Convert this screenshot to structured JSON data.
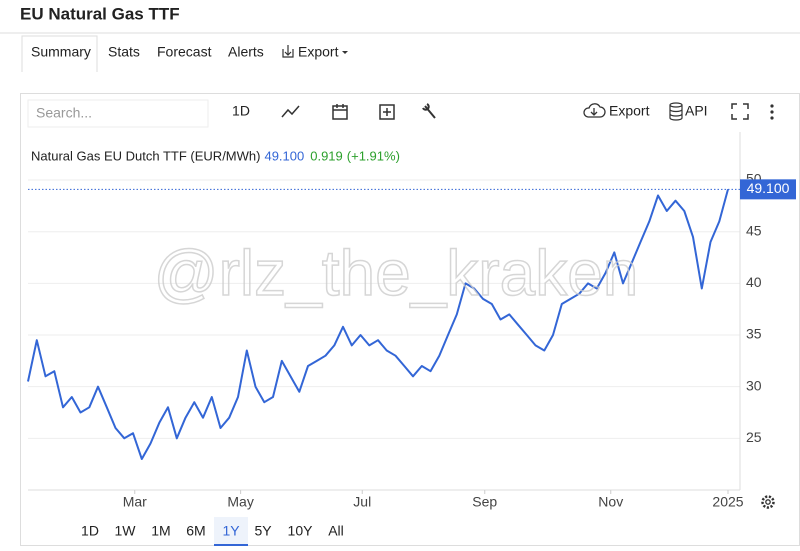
{
  "header": {
    "title": "EU Natural Gas TTF"
  },
  "tabs": [
    "Summary",
    "Stats",
    "Forecast",
    "Alerts",
    "Export"
  ],
  "toolbar": {
    "search_placeholder": "Search...",
    "interval": "1D",
    "export": "Export",
    "api": "API"
  },
  "watermark": "@rlz_the_kraken",
  "ranges": [
    "1D",
    "1W",
    "1M",
    "6M",
    "1Y",
    "5Y",
    "10Y",
    "All"
  ],
  "selected_range": "1Y",
  "chart_data": {
    "type": "line",
    "series": [
      {
        "name": "Natural Gas EU Dutch TTF (EUR/MWh)",
        "color": "#3366d6",
        "values": [
          30.5,
          34.5,
          31,
          31.5,
          28,
          29,
          27.5,
          28,
          30,
          28,
          26,
          25,
          25.5,
          23,
          24.5,
          26.5,
          28,
          25,
          27,
          28.5,
          27,
          29,
          26,
          27,
          29,
          33.5,
          30,
          28.5,
          29,
          32.5,
          31,
          29.5,
          32,
          32.5,
          33,
          34,
          35.8,
          34,
          35,
          34,
          34.5,
          33.5,
          33,
          32,
          31,
          32,
          31.5,
          33,
          35,
          37,
          40,
          39.5,
          38.5,
          38,
          36.5,
          37,
          36,
          35,
          34,
          33.5,
          35,
          38,
          38.5,
          39,
          40,
          39.5,
          41,
          43,
          40,
          42,
          44,
          46,
          48.5,
          47,
          48,
          47,
          44.5,
          39.5,
          44,
          46,
          49.1
        ]
      }
    ],
    "last": {
      "value": 49.1,
      "label": "49.100"
    },
    "change": {
      "value": 0.919,
      "label": "0.919"
    },
    "change_pct": {
      "value": 1.91,
      "label": "(+1.91%)"
    },
    "ylim": [
      20,
      54.65
    ],
    "yticks": [
      25,
      30,
      35,
      40,
      45,
      50
    ],
    "xticks": [
      {
        "value": 12.2,
        "label": "Mar"
      },
      {
        "value": 24.3,
        "label": "May"
      },
      {
        "value": 38.2,
        "label": "Jul"
      },
      {
        "value": 52.2,
        "label": "Sep"
      },
      {
        "value": 66.6,
        "label": "Nov"
      },
      {
        "value": 80,
        "label": "2025"
      }
    ],
    "grid": true
  }
}
